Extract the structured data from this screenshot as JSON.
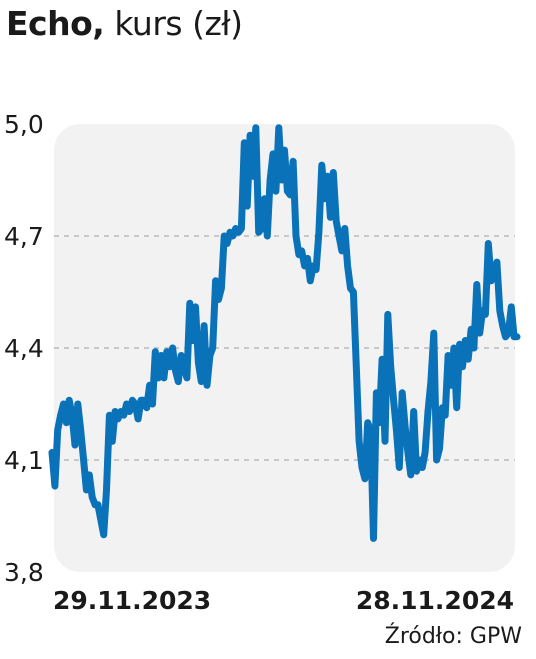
{
  "header": {
    "title_bold": "Echo,",
    "title_rest": "kurs (zł)"
  },
  "source": "Źródło: GPW",
  "chart_data": {
    "type": "line",
    "title": "Echo, kurs (zł)",
    "xlabel": "",
    "ylabel": "",
    "ylim": [
      3.8,
      5.0
    ],
    "yticks": [
      3.8,
      4.1,
      4.4,
      4.7,
      5.0
    ],
    "ytick_labels": [
      "3,8",
      "4,1",
      "4,4",
      "4,7",
      "5,0"
    ],
    "xtick_labels": [
      "29.11.2023",
      "28.11.2024"
    ],
    "grid": "horizontal-dashed",
    "legend": "none",
    "line_color": "#0a72b8",
    "background_color": "#f2f2f2",
    "series": [
      {
        "values": [
          4.12,
          4.03,
          4.18,
          4.22,
          4.25,
          4.2,
          4.26,
          4.22,
          4.14,
          4.25,
          4.18,
          4.1,
          4.02,
          4.06,
          4.0,
          3.98,
          3.98,
          3.94,
          3.9,
          4.02,
          4.22,
          4.15,
          4.23,
          4.21,
          4.23,
          4.22,
          4.25,
          4.23,
          4.26,
          4.25,
          4.21,
          4.26,
          4.26,
          4.24,
          4.3,
          4.25,
          4.39,
          4.32,
          4.38,
          4.32,
          4.39,
          4.35,
          4.4,
          4.34,
          4.31,
          4.38,
          4.35,
          4.32,
          4.52,
          4.42,
          4.51,
          4.36,
          4.31,
          4.46,
          4.3,
          4.38,
          4.4,
          4.58,
          4.53,
          4.56,
          4.7,
          4.68,
          4.71,
          4.7,
          4.72,
          4.71,
          4.72,
          4.95,
          4.78,
          4.97,
          4.86,
          4.99,
          4.71,
          4.72,
          4.8,
          4.7,
          4.85,
          4.92,
          4.82,
          4.99,
          4.85,
          4.93,
          4.82,
          4.81,
          4.9,
          4.7,
          4.65,
          4.66,
          4.62,
          4.64,
          4.58,
          4.62,
          4.61,
          4.71,
          4.89,
          4.8,
          4.86,
          4.75,
          4.87,
          4.74,
          4.7,
          4.66,
          4.72,
          4.62,
          4.56,
          4.55,
          4.35,
          4.15,
          4.08,
          4.05,
          4.2,
          4.18,
          3.89,
          4.28,
          4.2,
          4.37,
          4.15,
          4.49,
          4.35,
          4.26,
          4.18,
          4.08,
          4.28,
          4.19,
          4.12,
          4.06,
          4.23,
          4.07,
          4.1,
          4.08,
          4.12,
          4.23,
          4.31,
          4.44,
          4.1,
          4.13,
          4.24,
          4.22,
          4.38,
          4.3,
          4.4,
          4.24,
          4.41,
          4.35,
          4.42,
          4.37,
          4.45,
          4.4,
          4.57,
          4.44,
          4.5,
          4.49,
          4.68,
          4.58,
          4.6,
          4.63,
          4.5,
          4.46,
          4.43,
          4.44,
          4.51,
          4.43,
          4.43
        ]
      }
    ]
  }
}
